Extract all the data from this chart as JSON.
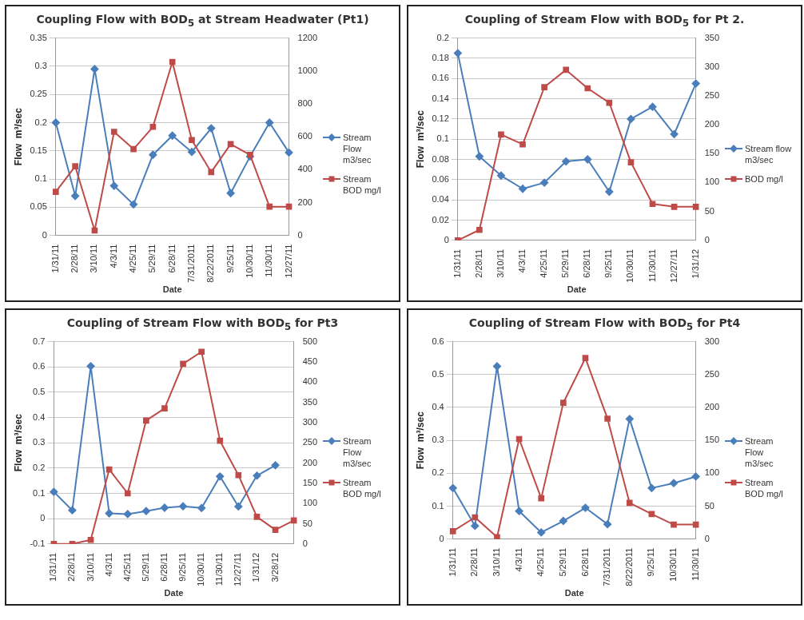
{
  "chart_data": [
    {
      "type": "line",
      "title": "Coupling Flow with BOD$_{5}$ at Stream Headwater (Pt1)",
      "xlabel": "Date",
      "ylabel": "Flow  m³/sec",
      "categories": [
        "1/31/11",
        "2/28/11",
        "3/10/11",
        "4/3/11",
        "4/25/11",
        "5/29/11",
        "6/28/11",
        "7/31/2011",
        "8/22/2011",
        "9/25/11",
        "10/30/11",
        "11/30/11",
        "12/27/11"
      ],
      "series": [
        {
          "name": "Stream Flow m3/sec",
          "color": "#4a7ebb",
          "marker": "diamond",
          "values": [
            0.2,
            0.07,
            0.295,
            0.088,
            0.055,
            0.143,
            0.177,
            0.148,
            0.19,
            0.075,
            0.14,
            0.2,
            0.147
          ]
        },
        {
          "name": "Stream BOD mg/l",
          "color": "#be4b48",
          "marker": "square",
          "axis": "y2",
          "values": [
            265,
            420,
            30,
            630,
            525,
            660,
            1055,
            580,
            385,
            555,
            490,
            175,
            175
          ]
        }
      ],
      "ylim": [
        0,
        0.35
      ],
      "yticks": [
        0,
        0.05,
        0.1,
        0.15,
        0.2,
        0.25,
        0.3,
        0.35
      ],
      "y2lim": [
        0,
        1200
      ],
      "y2ticks": [
        0,
        200,
        400,
        600,
        800,
        1000,
        1200
      ],
      "grid": "y",
      "legend": "right"
    },
    {
      "type": "line",
      "title": "Coupling of Stream Flow with BOD$_{5}$ for Pt 2.",
      "xlabel": "Date",
      "ylabel": "Flow  m³/sec",
      "categories": [
        "1/31/11",
        "2/28/11",
        "3/10/11",
        "4/3/11",
        "4/25/11",
        "5/29/11",
        "6/28/11",
        "9/25/11",
        "10/30/11",
        "11/30/11",
        "12/27/11",
        "1/31/12"
      ],
      "series": [
        {
          "name": "Stream flow m3/sec",
          "color": "#4a7ebb",
          "marker": "diamond",
          "values": [
            0.185,
            0.083,
            0.064,
            0.051,
            0.057,
            0.078,
            0.08,
            0.048,
            0.12,
            0.132,
            0.105,
            0.155
          ]
        },
        {
          "name": "BOD mg/l",
          "color": "#be4b48",
          "marker": "square",
          "axis": "y2",
          "values": [
            0,
            18,
            183,
            166,
            265,
            295,
            263,
            238,
            135,
            63,
            58,
            58
          ]
        }
      ],
      "ylim": [
        0,
        0.2
      ],
      "yticks": [
        0,
        0.02,
        0.04,
        0.06,
        0.08,
        0.1,
        0.12,
        0.14,
        0.16,
        0.18,
        0.2
      ],
      "y2lim": [
        0,
        350
      ],
      "y2ticks": [
        0,
        50,
        100,
        150,
        200,
        250,
        300,
        350
      ],
      "grid": "y",
      "legend": "right"
    },
    {
      "type": "line",
      "title": "Coupling  of  Stream Flow with BOD$_{5}$ for Pt3",
      "xlabel": "Date",
      "ylabel": "Flow  m³/sec",
      "categories": [
        "1/31/11",
        "2/28/11",
        "3/10/11",
        "4/3/11",
        "4/25/11",
        "5/29/11",
        "6/28/11",
        "9/25/11",
        "10/30/11",
        "11/30/11",
        "12/27/11",
        "1/31/12",
        "3/28/12",
        null
      ],
      "series": [
        {
          "name": "Stream Flow m3/sec",
          "color": "#4a7ebb",
          "marker": "diamond",
          "values": [
            0.106,
            0.033,
            0.603,
            0.021,
            0.018,
            0.03,
            0.043,
            0.049,
            0.042,
            0.167,
            0.048,
            0.17,
            0.211,
            null
          ]
        },
        {
          "name": "Stream BOD mg/l",
          "color": "#be4b48",
          "marker": "square",
          "axis": "y2",
          "values": [
            0,
            0,
            10,
            184,
            125,
            305,
            335,
            445,
            475,
            255,
            170,
            67,
            35,
            58
          ]
        }
      ],
      "ylim": [
        -0.1,
        0.7
      ],
      "yticks": [
        -0.1,
        0,
        0.1,
        0.2,
        0.3,
        0.4,
        0.5,
        0.6,
        0.7
      ],
      "y2lim": [
        0,
        500
      ],
      "y2ticks": [
        0,
        50,
        100,
        150,
        200,
        250,
        300,
        350,
        400,
        450,
        500
      ],
      "grid": "y",
      "legend": "right"
    },
    {
      "type": "line",
      "title": "Coupling  of  Stream Flow with BOD$_{5}$ for Pt4",
      "xlabel": "Date",
      "ylabel": "Flow  m³/sec",
      "categories": [
        "1/31/11",
        "2/28/11",
        "3/10/11",
        "4/3/11",
        "4/25/11",
        "5/29/11",
        "6/28/11",
        "7/31/2011",
        "8/22/2011",
        "9/25/11",
        "10/30/11",
        "11/30/11"
      ],
      "series": [
        {
          "name": "Stream Flow m3/sec",
          "color": "#4a7ebb",
          "marker": "diamond",
          "values": [
            0.155,
            0.04,
            0.525,
            0.085,
            0.02,
            0.055,
            0.095,
            0.045,
            0.365,
            0.155,
            0.17,
            0.19
          ]
        },
        {
          "name": "Stream BOD mg/l",
          "color": "#be4b48",
          "marker": "square",
          "axis": "y2",
          "values": [
            12,
            33,
            3,
            152,
            62,
            207,
            275,
            183,
            55,
            38,
            22,
            22
          ]
        }
      ],
      "ylim": [
        0,
        0.6
      ],
      "yticks": [
        0,
        0.1,
        0.2,
        0.3,
        0.4,
        0.5,
        0.6
      ],
      "y2lim": [
        0,
        300
      ],
      "y2ticks": [
        0,
        50,
        100,
        150,
        200,
        250,
        300
      ],
      "grid": "y",
      "legend": "right"
    }
  ]
}
